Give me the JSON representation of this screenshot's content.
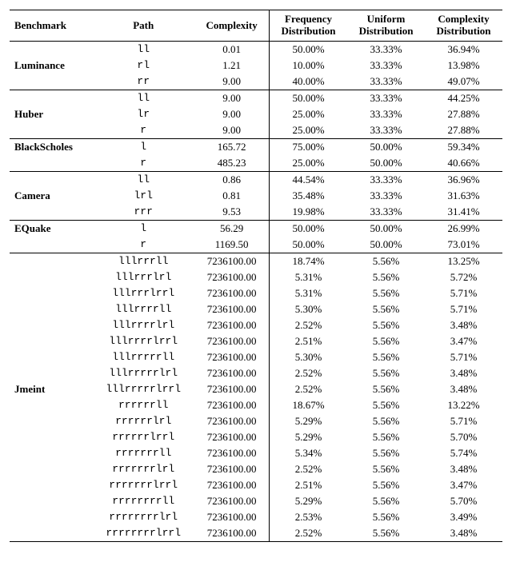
{
  "headers": {
    "benchmark": "Benchmark",
    "path": "Path",
    "complexity": "Complexity",
    "freq_top": "Frequency",
    "freq_bot": "Distribution",
    "unif_top": "Uniform",
    "unif_bot": "Distribution",
    "cplx_top": "Complexity",
    "cplx_bot": "Distribution"
  },
  "groups": [
    {
      "name": "Luminance",
      "rows": [
        {
          "path": "ll",
          "complexity": "0.01",
          "freq": "50.00%",
          "unif": "33.33%",
          "cplx": "36.94%"
        },
        {
          "path": "rl",
          "complexity": "1.21",
          "freq": "10.00%",
          "unif": "33.33%",
          "cplx": "13.98%"
        },
        {
          "path": "rr",
          "complexity": "9.00",
          "freq": "40.00%",
          "unif": "33.33%",
          "cplx": "49.07%"
        }
      ]
    },
    {
      "name": "Huber",
      "rows": [
        {
          "path": "ll",
          "complexity": "9.00",
          "freq": "50.00%",
          "unif": "33.33%",
          "cplx": "44.25%"
        },
        {
          "path": "lr",
          "complexity": "9.00",
          "freq": "25.00%",
          "unif": "33.33%",
          "cplx": "27.88%"
        },
        {
          "path": "r",
          "complexity": "9.00",
          "freq": "25.00%",
          "unif": "33.33%",
          "cplx": "27.88%"
        }
      ]
    },
    {
      "name": "BlackScholes",
      "rows": [
        {
          "path": "l",
          "complexity": "165.72",
          "freq": "75.00%",
          "unif": "50.00%",
          "cplx": "59.34%"
        },
        {
          "path": "r",
          "complexity": "485.23",
          "freq": "25.00%",
          "unif": "50.00%",
          "cplx": "40.66%"
        }
      ]
    },
    {
      "name": "Camera",
      "rows": [
        {
          "path": "ll",
          "complexity": "0.86",
          "freq": "44.54%",
          "unif": "33.33%",
          "cplx": "36.96%"
        },
        {
          "path": "lrl",
          "complexity": "0.81",
          "freq": "35.48%",
          "unif": "33.33%",
          "cplx": "31.63%"
        },
        {
          "path": "rrr",
          "complexity": "9.53",
          "freq": "19.98%",
          "unif": "33.33%",
          "cplx": "31.41%"
        }
      ]
    },
    {
      "name": "EQuake",
      "rows": [
        {
          "path": "l",
          "complexity": "56.29",
          "freq": "50.00%",
          "unif": "50.00%",
          "cplx": "26.99%"
        },
        {
          "path": "r",
          "complexity": "1169.50",
          "freq": "50.00%",
          "unif": "50.00%",
          "cplx": "73.01%"
        }
      ]
    },
    {
      "name": "Jmeint",
      "rows": [
        {
          "path": "lllrrrll",
          "complexity": "7236100.00",
          "freq": "18.74%",
          "unif": "5.56%",
          "cplx": "13.25%"
        },
        {
          "path": "lllrrrlrl",
          "complexity": "7236100.00",
          "freq": "5.31%",
          "unif": "5.56%",
          "cplx": "5.72%"
        },
        {
          "path": "lllrrrlrrl",
          "complexity": "7236100.00",
          "freq": "5.31%",
          "unif": "5.56%",
          "cplx": "5.71%"
        },
        {
          "path": "lllrrrrll",
          "complexity": "7236100.00",
          "freq": "5.30%",
          "unif": "5.56%",
          "cplx": "5.71%"
        },
        {
          "path": "lllrrrrlrl",
          "complexity": "7236100.00",
          "freq": "2.52%",
          "unif": "5.56%",
          "cplx": "3.48%"
        },
        {
          "path": "lllrrrrlrrl",
          "complexity": "7236100.00",
          "freq": "2.51%",
          "unif": "5.56%",
          "cplx": "3.47%"
        },
        {
          "path": "lllrrrrrll",
          "complexity": "7236100.00",
          "freq": "5.30%",
          "unif": "5.56%",
          "cplx": "5.71%"
        },
        {
          "path": "lllrrrrrlrl",
          "complexity": "7236100.00",
          "freq": "2.52%",
          "unif": "5.56%",
          "cplx": "3.48%"
        },
        {
          "path": "lllrrrrrlrrl",
          "complexity": "7236100.00",
          "freq": "2.52%",
          "unif": "5.56%",
          "cplx": "3.48%"
        },
        {
          "path": "rrrrrrll",
          "complexity": "7236100.00",
          "freq": "18.67%",
          "unif": "5.56%",
          "cplx": "13.22%"
        },
        {
          "path": "rrrrrrlrl",
          "complexity": "7236100.00",
          "freq": "5.29%",
          "unif": "5.56%",
          "cplx": "5.71%"
        },
        {
          "path": "rrrrrrlrrl",
          "complexity": "7236100.00",
          "freq": "5.29%",
          "unif": "5.56%",
          "cplx": "5.70%"
        },
        {
          "path": "rrrrrrrll",
          "complexity": "7236100.00",
          "freq": "5.34%",
          "unif": "5.56%",
          "cplx": "5.74%"
        },
        {
          "path": "rrrrrrrlrl",
          "complexity": "7236100.00",
          "freq": "2.52%",
          "unif": "5.56%",
          "cplx": "3.48%"
        },
        {
          "path": "rrrrrrrlrrl",
          "complexity": "7236100.00",
          "freq": "2.51%",
          "unif": "5.56%",
          "cplx": "3.47%"
        },
        {
          "path": "rrrrrrrrll",
          "complexity": "7236100.00",
          "freq": "5.29%",
          "unif": "5.56%",
          "cplx": "5.70%"
        },
        {
          "path": "rrrrrrrrlrl",
          "complexity": "7236100.00",
          "freq": "2.53%",
          "unif": "5.56%",
          "cplx": "3.49%"
        },
        {
          "path": "rrrrrrrrlrrl",
          "complexity": "7236100.00",
          "freq": "2.52%",
          "unif": "5.56%",
          "cplx": "3.48%"
        }
      ]
    }
  ]
}
